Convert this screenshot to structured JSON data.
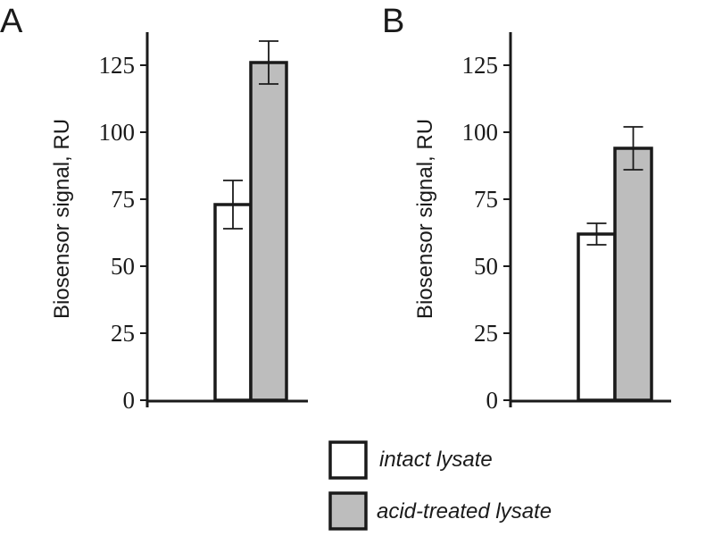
{
  "chart_data": [
    {
      "type": "bar",
      "panel_label": "A",
      "ylabel": "Biosensor signal, RU",
      "ylim": [
        0,
        137
      ],
      "yticks": [
        0,
        25,
        50,
        75,
        100,
        125
      ],
      "categories": [
        "intact lysate",
        "acid-treated lysate"
      ],
      "values": [
        73,
        126
      ],
      "errors": [
        9,
        8
      ],
      "colors": [
        "#ffffff",
        "#bdbdbd"
      ]
    },
    {
      "type": "bar",
      "panel_label": "B",
      "ylabel": "Biosensor signal, RU",
      "ylim": [
        0,
        137
      ],
      "yticks": [
        0,
        25,
        50,
        75,
        100,
        125
      ],
      "categories": [
        "intact lysate",
        "acid-treated lysate"
      ],
      "values": [
        62,
        94
      ],
      "errors": [
        4,
        8
      ],
      "colors": [
        "#ffffff",
        "#bdbdbd"
      ]
    }
  ],
  "legend": {
    "placement": "bottom-right",
    "items": [
      {
        "label": "intact lysate",
        "color": "#ffffff"
      },
      {
        "label": "acid-treated lysate",
        "color": "#bdbdbd"
      }
    ]
  }
}
